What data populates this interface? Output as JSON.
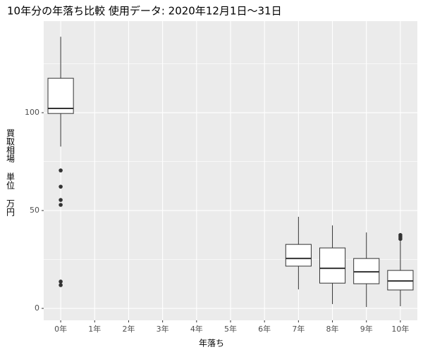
{
  "chart_data": {
    "type": "boxplot",
    "title": "10年分の年落ち比較 使用データ: 2020年12月1日～31日",
    "x_label": "年落ち",
    "y_label": "買取相場 単位 万円",
    "categories": [
      "0年",
      "1年",
      "2年",
      "3年",
      "4年",
      "5年",
      "6年",
      "7年",
      "8年",
      "9年",
      "10年"
    ],
    "whisker_low": [
      82.7,
      null,
      null,
      null,
      null,
      null,
      null,
      9.7,
      2.2,
      0.7,
      1.1
    ],
    "q1": [
      99.6,
      null,
      null,
      null,
      null,
      null,
      null,
      21.6,
      12.9,
      12.6,
      9.4
    ],
    "median": [
      102.2,
      null,
      null,
      null,
      null,
      null,
      null,
      25.5,
      20.5,
      18.7,
      14.0
    ],
    "q3": [
      117.6,
      null,
      null,
      null,
      null,
      null,
      null,
      32.7,
      30.9,
      25.5,
      19.4
    ],
    "whisker_high": [
      138.8,
      null,
      null,
      null,
      null,
      null,
      null,
      46.8,
      42.4,
      38.8,
      34.5
    ],
    "outliers": [
      [
        70.5,
        62.2,
        55.4,
        52.9,
        13.7,
        11.9
      ],
      [],
      [],
      [],
      [],
      [],
      [],
      [],
      [],
      [],
      [
        37.5,
        36.5,
        35.5
      ]
    ],
    "ylim": [
      -6.1,
      146.8
    ],
    "yticks": [
      0,
      50,
      100
    ],
    "y_minor_ticks": [
      25,
      75,
      125
    ],
    "grid": true,
    "panel_color": "#ebebeb",
    "box_fill": "#ffffff",
    "line_color": "#333333"
  }
}
